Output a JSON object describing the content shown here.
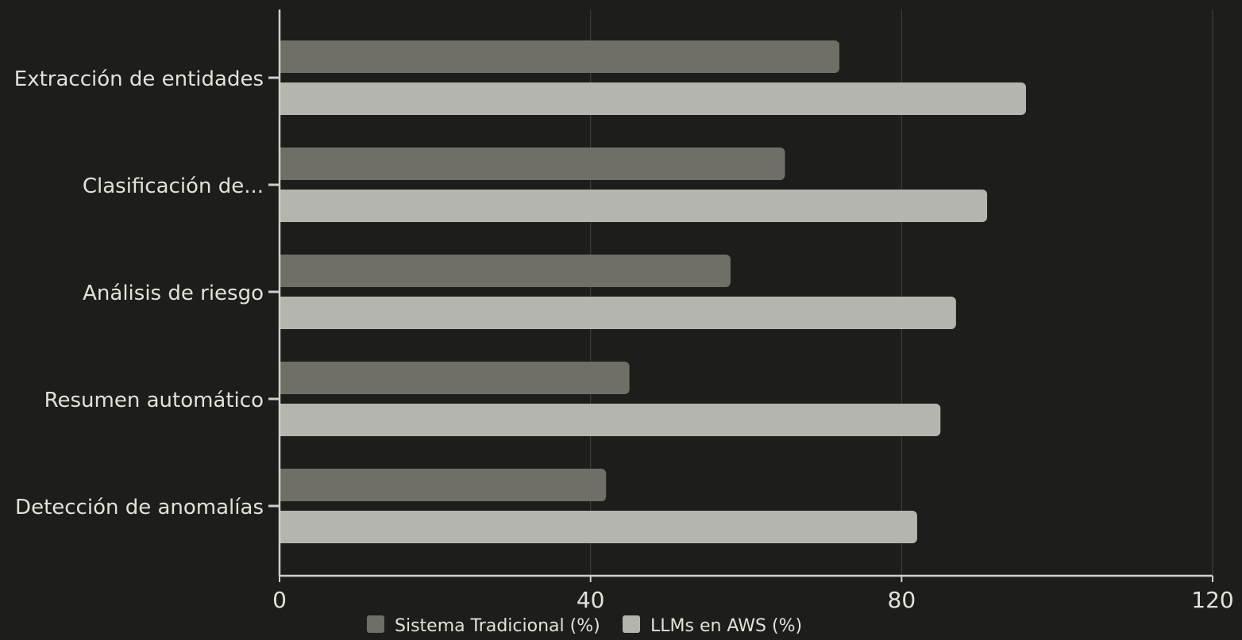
{
  "chart_data": {
    "type": "bar",
    "orientation": "horizontal",
    "categories": [
      "Extracción de entidades",
      "Clasificación de...",
      "Análisis de riesgo",
      "Resumen automático",
      "Detección de anomalías"
    ],
    "series": [
      {
        "name": "Sistema Tradicional (%)",
        "color": "#6f6f67",
        "values": [
          72,
          65,
          58,
          45,
          42
        ]
      },
      {
        "name": "LLMs en AWS (%)",
        "color": "#b4b5ae",
        "values": [
          96,
          91,
          87,
          85,
          82
        ]
      }
    ],
    "xlim": [
      0,
      120
    ],
    "xticks": [
      "0",
      "40",
      "80",
      "120"
    ],
    "grid": true,
    "legend_position": "bottom-center",
    "colors": {
      "background": "#1d1d1b",
      "axis": "#d0d0c8",
      "grid": "#3c3c39",
      "text": "#e2e2da"
    }
  }
}
